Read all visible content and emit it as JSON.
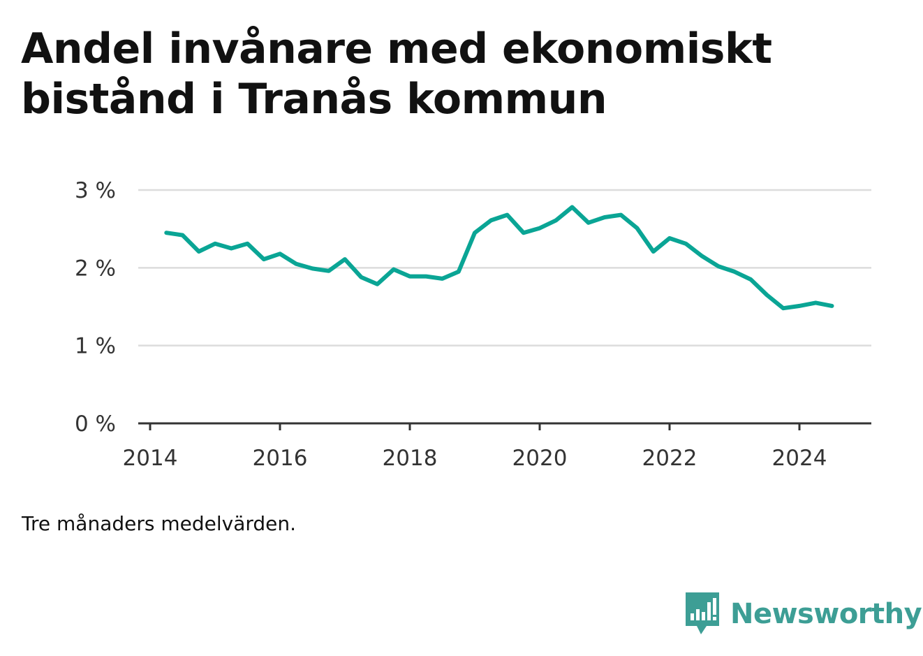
{
  "title": "Andel invånare med ekonomiskt bistånd i Tranås kommun",
  "note": "Tre månaders medelvärden.",
  "brand": {
    "name": "Newsworthy",
    "icon": "newsworthy-logo-icon",
    "color": "#3d9e95"
  },
  "chart_data": {
    "type": "line",
    "title": "Andel invånare med ekonomiskt bistånd i Tranås kommun",
    "xlabel": "",
    "ylabel": "",
    "x_ticks": [
      "2014",
      "2016",
      "2018",
      "2020",
      "2022",
      "2024"
    ],
    "y_ticks": [
      "0 %",
      "1 %",
      "2 %",
      "3 %"
    ],
    "ylim": [
      0,
      3
    ],
    "xlim": [
      "2014-01",
      "2025-04"
    ],
    "grid": true,
    "line_color": "#0aa595",
    "series": [
      {
        "name": "",
        "x": [
          "2014-04",
          "2014-07",
          "2014-10",
          "2015-01",
          "2015-04",
          "2015-07",
          "2015-10",
          "2016-01",
          "2016-04",
          "2016-07",
          "2016-10",
          "2017-01",
          "2017-04",
          "2017-07",
          "2017-10",
          "2018-01",
          "2018-04",
          "2018-07",
          "2018-10",
          "2019-01",
          "2019-04",
          "2019-07",
          "2019-10",
          "2020-01",
          "2020-04",
          "2020-07",
          "2020-10",
          "2021-01",
          "2021-04",
          "2021-07",
          "2021-10",
          "2022-01",
          "2022-04",
          "2022-07",
          "2022-10",
          "2023-01",
          "2023-04",
          "2023-07",
          "2023-10",
          "2024-01",
          "2024-04",
          "2024-07"
        ],
        "values": [
          2.45,
          2.42,
          2.21,
          2.31,
          2.25,
          2.31,
          2.11,
          2.18,
          2.05,
          1.99,
          1.96,
          2.11,
          1.88,
          1.79,
          1.98,
          1.89,
          1.89,
          1.86,
          1.95,
          2.45,
          2.61,
          2.68,
          2.45,
          2.51,
          2.61,
          2.78,
          2.58,
          2.65,
          2.68,
          2.51,
          2.21,
          2.38,
          2.31,
          2.15,
          2.02,
          1.95,
          1.85,
          1.65,
          1.48,
          1.51,
          1.55,
          1.51
        ]
      }
    ]
  }
}
